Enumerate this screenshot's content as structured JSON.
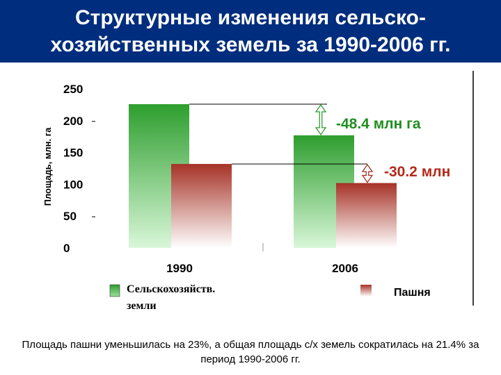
{
  "title": "Структурные изменения сельско-хозяйственных земель за 1990-2006 гг.",
  "caption": "Площадь пашни уменьшилась на 23%, а общая площадь с/х земель сократилась на 21.4% за период 1990-2006 гг.",
  "chart_data": {
    "type": "bar",
    "ylabel": "Площадь, млн. га",
    "ylim": [
      0,
      250
    ],
    "yticks": [
      "0",
      "50",
      "100",
      "150",
      "200",
      "250"
    ],
    "categories": [
      "1990",
      "2006"
    ],
    "series": [
      {
        "name": "Сельскохозяйств. земли",
        "values": [
          226,
          177
        ],
        "color": "#2e9e2e"
      },
      {
        "name": "Пашня",
        "values": [
          132,
          102
        ],
        "color": "#a63226"
      }
    ],
    "annotations": [
      {
        "text": "-48.4 млн га",
        "series": 0,
        "color": "#1e8f1e"
      },
      {
        "text": "-30.2 млн",
        "series": 1,
        "color": "#b22a1a"
      }
    ],
    "legend": "bottom"
  }
}
